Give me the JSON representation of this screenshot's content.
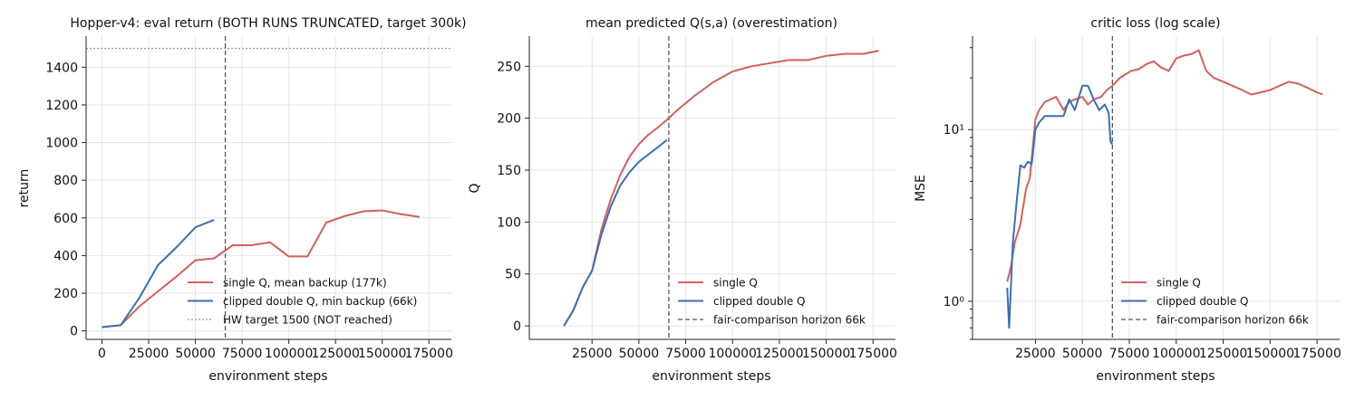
{
  "colors": {
    "single": "#d1605e",
    "double": "#3b6fb6",
    "target": "#999999",
    "horizon": "#555555"
  },
  "chart_data": [
    {
      "type": "line",
      "title": "Hopper-v4: eval return  (BOTH RUNS TRUNCATED, target 300k)",
      "xlabel": "environment steps",
      "ylabel": "return",
      "xlim": [
        -8500,
        187000
      ],
      "ylim": [
        -45,
        1565
      ],
      "xticks": [
        0,
        25000,
        50000,
        75000,
        100000,
        125000,
        150000,
        175000
      ],
      "xtick_labels": [
        "0",
        "25000",
        "50000",
        "75000",
        "100000",
        "125000",
        "150000",
        "175000"
      ],
      "yticks": [
        0,
        200,
        400,
        600,
        800,
        1000,
        1200,
        1400
      ],
      "ytick_labels": [
        "0",
        "200",
        "400",
        "600",
        "800",
        "1000",
        "1200",
        "1400"
      ],
      "grid": true,
      "legend_position": "lower-right",
      "series": [
        {
          "name": "single Q, mean backup (177k)",
          "color_key": "single",
          "x": [
            0,
            10000,
            20000,
            30000,
            40000,
            50000,
            60000,
            70000,
            80000,
            90000,
            100000,
            110000,
            120000,
            130000,
            140000,
            150000,
            160000,
            170000
          ],
          "y": [
            20,
            30,
            130,
            210,
            290,
            375,
            385,
            455,
            455,
            470,
            395,
            395,
            575,
            610,
            635,
            640,
            620,
            605
          ]
        },
        {
          "name": "clipped double Q, min backup (66k)",
          "color_key": "double",
          "x": [
            0,
            10000,
            20000,
            30000,
            40000,
            50000,
            60000
          ],
          "y": [
            20,
            30,
            175,
            350,
            445,
            550,
            590
          ]
        }
      ],
      "hlines": [
        {
          "name": "HW target 1500 (NOT reached)",
          "y": 1500,
          "color_key": "target",
          "style": "dotted"
        }
      ],
      "vlines": [
        {
          "x": 66000,
          "color_key": "horizon",
          "style": "dashed"
        }
      ]
    },
    {
      "type": "line",
      "title": "mean predicted Q(s,a)  (overestimation)",
      "xlabel": "environment steps",
      "ylabel": "Q",
      "xlim": [
        -8500,
        187000
      ],
      "ylim": [
        -13,
        279
      ],
      "xticks": [
        25000,
        50000,
        75000,
        100000,
        125000,
        150000,
        175000
      ],
      "xtick_labels": [
        "25000",
        "50000",
        "75000",
        "100000",
        "125000",
        "150000",
        "175000"
      ],
      "yticks": [
        0,
        50,
        100,
        150,
        200,
        250
      ],
      "ytick_labels": [
        "0",
        "50",
        "100",
        "150",
        "200",
        "250"
      ],
      "grid": true,
      "legend_position": "lower-right",
      "series": [
        {
          "name": "single Q",
          "color_key": "single",
          "x": [
            10000,
            15000,
            20000,
            25000,
            30000,
            35000,
            40000,
            45000,
            50000,
            55000,
            60000,
            66000,
            70000,
            80000,
            90000,
            100000,
            110000,
            120000,
            130000,
            140000,
            150000,
            160000,
            170000,
            178000
          ],
          "y": [
            0,
            15,
            37,
            53,
            93,
            122,
            145,
            163,
            175,
            184,
            191,
            200,
            207,
            222,
            235,
            245,
            250,
            253,
            256,
            256,
            260,
            262,
            262,
            265
          ]
        },
        {
          "name": "clipped double Q",
          "color_key": "double",
          "x": [
            10000,
            15000,
            20000,
            25000,
            30000,
            35000,
            40000,
            45000,
            50000,
            55000,
            60000,
            65000
          ],
          "y": [
            0,
            15,
            37,
            53,
            88,
            115,
            135,
            148,
            158,
            165,
            172,
            179
          ]
        }
      ],
      "vlines": [
        {
          "name": "fair-comparison horizon 66k",
          "x": 66000,
          "color_key": "horizon",
          "style": "dashed"
        }
      ]
    },
    {
      "type": "line",
      "title": "critic loss (log scale)",
      "xlabel": "environment steps",
      "ylabel": "MSE",
      "yscale": "log",
      "xlim": [
        -8500,
        187000
      ],
      "ylim": [
        0.6,
        35
      ],
      "xticks": [
        25000,
        50000,
        75000,
        100000,
        125000,
        150000,
        175000
      ],
      "xtick_labels": [
        "25000",
        "50000",
        "75000",
        "100000",
        "125000",
        "150000",
        "175000"
      ],
      "yticks": [
        1,
        10
      ],
      "ytick_labels": [
        "10⁰",
        "10¹"
      ],
      "grid": true,
      "legend_position": "lower-right",
      "series": [
        {
          "name": "single Q",
          "color_key": "single",
          "x": [
            10000,
            12000,
            14000,
            17000,
            20000,
            22000,
            25000,
            27000,
            30000,
            33000,
            36000,
            40000,
            43000,
            46000,
            50000,
            53000,
            56000,
            60000,
            63000,
            66000,
            70000,
            73000,
            76000,
            80000,
            84000,
            88000,
            92000,
            96000,
            100000,
            104000,
            108000,
            112000,
            116000,
            120000,
            125000,
            130000,
            135000,
            140000,
            145000,
            150000,
            155000,
            160000,
            165000,
            170000,
            175000,
            178000
          ],
          "y": [
            1.3,
            1.6,
            2.2,
            2.8,
            4.5,
            5.2,
            11.5,
            13,
            14.5,
            15,
            15.5,
            13,
            14.5,
            15,
            15.5,
            14,
            15,
            15.5,
            17,
            18,
            20,
            21,
            22,
            22.5,
            24,
            25,
            23,
            22,
            26,
            27,
            27.5,
            29,
            22,
            20,
            19,
            18,
            17,
            16,
            16.5,
            17,
            18,
            19,
            18.5,
            17.5,
            16.5,
            16
          ]
        },
        {
          "name": "clipped double Q",
          "color_key": "double",
          "x": [
            10000,
            11000,
            13000,
            15000,
            17000,
            19000,
            21000,
            23000,
            25000,
            27000,
            30000,
            33000,
            36000,
            40000,
            43000,
            46000,
            50000,
            53000,
            56000,
            59000,
            62000,
            64000,
            65000,
            66000
          ],
          "y": [
            1.2,
            0.7,
            2.2,
            3.8,
            6.2,
            6.0,
            6.5,
            6.3,
            10,
            11,
            12,
            12,
            12,
            12,
            15,
            13,
            18,
            18,
            15,
            13,
            14,
            12.5,
            8.5,
            8.2
          ]
        }
      ],
      "vlines": [
        {
          "name": "fair-comparison horizon 66k",
          "x": 66000,
          "color_key": "horizon",
          "style": "dashed"
        }
      ]
    }
  ]
}
